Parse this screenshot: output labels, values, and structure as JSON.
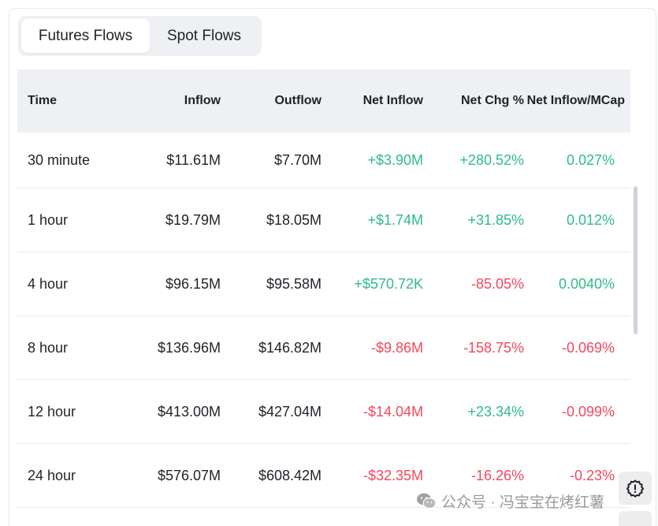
{
  "tabs": [
    {
      "label": "Futures Flows",
      "active": true
    },
    {
      "label": "Spot Flows",
      "active": false
    }
  ],
  "table": {
    "headers": {
      "time": "Time",
      "inflow": "Inflow",
      "outflow": "Outflow",
      "net_inflow": "Net Inflow",
      "net_chg": "Net Chg %",
      "net_mcap": "Net Inflow/MCap"
    },
    "rows": [
      {
        "time": "30 minute",
        "inflow": "$11.61M",
        "outflow": "$7.70M",
        "net_inflow": "+$3.90M",
        "net_chg": "+280.52%",
        "net_mcap": "0.027%"
      },
      {
        "time": "1 hour",
        "inflow": "$19.79M",
        "outflow": "$18.05M",
        "net_inflow": "+$1.74M",
        "net_chg": "+31.85%",
        "net_mcap": "0.012%"
      },
      {
        "time": "4 hour",
        "inflow": "$96.15M",
        "outflow": "$95.58M",
        "net_inflow": "+$570.72K",
        "net_chg": "-85.05%",
        "net_mcap": "0.0040%"
      },
      {
        "time": "8 hour",
        "inflow": "$136.96M",
        "outflow": "$146.82M",
        "net_inflow": "-$9.86M",
        "net_chg": "-158.75%",
        "net_mcap": "-0.069%"
      },
      {
        "time": "12 hour",
        "inflow": "$413.00M",
        "outflow": "$427.04M",
        "net_inflow": "-$14.04M",
        "net_chg": "+23.34%",
        "net_mcap": "-0.099%"
      },
      {
        "time": "24 hour",
        "inflow": "$576.07M",
        "outflow": "$608.42M",
        "net_inflow": "-$32.35M",
        "net_chg": "-16.26%",
        "net_mcap": "-0.23%"
      }
    ]
  },
  "watermark": {
    "text": "公众号 · 冯宝宝在烤红薯",
    "icon": "wechat-icon"
  },
  "feedback": {
    "icon": "feedback-alert-icon"
  },
  "colors": {
    "positive": "#2ebd85",
    "negative": "#f6465d",
    "header_bg": "#eef0f3",
    "text": "#1e2329"
  }
}
